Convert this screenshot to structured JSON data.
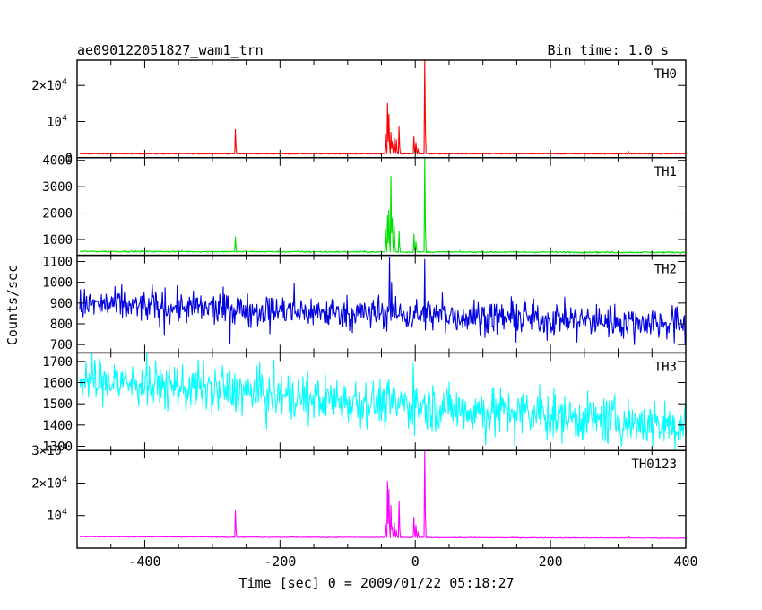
{
  "chart_data": {
    "type": "line",
    "title": "ae090122051827_wam1_trn",
    "subtitle": "Bin time: 1.0 s",
    "xlabel": "Time [sec] 0 = 2009/01/22 05:18:27",
    "ylabel": "Counts/sec",
    "xlim": [
      -500,
      400
    ],
    "xticks": [
      -400,
      -200,
      0,
      200,
      400
    ],
    "panels": [
      {
        "name": "TH0",
        "color": "#ff0000",
        "ylim": [
          0,
          27000
        ],
        "yticks": [
          {
            "v": 0,
            "m": "0",
            "e": ""
          },
          {
            "v": 10000,
            "m": "10",
            "e": "4"
          },
          {
            "v": 20000,
            "m": "2×10",
            "e": "4"
          }
        ],
        "baseline": 1100,
        "slope": 0,
        "noise": 60,
        "noise_mode": "flat",
        "peaks": [
          [
            -266,
            7800
          ],
          [
            -44,
            6500
          ],
          [
            -41,
            15000
          ],
          [
            -39,
            12000
          ],
          [
            -36,
            7000
          ],
          [
            -34,
            4500
          ],
          [
            -31,
            5500
          ],
          [
            -28,
            5000
          ],
          [
            -24,
            8500
          ],
          [
            -2,
            5800
          ],
          [
            1,
            4200
          ],
          [
            4,
            2500
          ],
          [
            14,
            27000
          ],
          [
            315,
            1900
          ]
        ]
      },
      {
        "name": "TH1",
        "color": "#00e000",
        "ylim": [
          400,
          4100
        ],
        "yticks": [
          {
            "v": 1000,
            "m": "1000",
            "e": ""
          },
          {
            "v": 2000,
            "m": "2000",
            "e": ""
          },
          {
            "v": 3000,
            "m": "3000",
            "e": ""
          },
          {
            "v": 4000,
            "m": "4000",
            "e": ""
          }
        ],
        "baseline": 530,
        "slope": -0.04,
        "noise": 15,
        "noise_mode": "flat",
        "peaks": [
          [
            -266,
            1100
          ],
          [
            -44,
            1400
          ],
          [
            -41,
            1900
          ],
          [
            -39,
            2100
          ],
          [
            -36,
            3400
          ],
          [
            -34,
            1800
          ],
          [
            -31,
            1500
          ],
          [
            -24,
            1300
          ],
          [
            -2,
            1200
          ],
          [
            1,
            900
          ],
          [
            14,
            4100
          ]
        ]
      },
      {
        "name": "TH2",
        "color": "#0000e0",
        "ylim": [
          660,
          1130
        ],
        "yticks": [
          {
            "v": 700,
            "m": "700",
            "e": ""
          },
          {
            "v": 800,
            "m": "800",
            "e": ""
          },
          {
            "v": 900,
            "m": "900",
            "e": ""
          },
          {
            "v": 1000,
            "m": "1000",
            "e": ""
          },
          {
            "v": 1100,
            "m": "1100",
            "e": ""
          }
        ],
        "baseline": 848,
        "slope": -0.1,
        "noise": 38,
        "noise_mode": "spiky",
        "peaks": [
          [
            -38,
            1120
          ],
          [
            -35,
            1000
          ],
          [
            14,
            1110
          ]
        ]
      },
      {
        "name": "TH3",
        "color": "#00ffff",
        "ylim": [
          1280,
          1740
        ],
        "yticks": [
          {
            "v": 1300,
            "m": "1300",
            "e": ""
          },
          {
            "v": 1400,
            "m": "1400",
            "e": ""
          },
          {
            "v": 1500,
            "m": "1500",
            "e": ""
          },
          {
            "v": 1600,
            "m": "1600",
            "e": ""
          },
          {
            "v": 1700,
            "m": "1700",
            "e": ""
          }
        ],
        "baseline": 1505,
        "slope": -0.25,
        "noise": 55,
        "noise_mode": "spiky",
        "peaks": [
          [
            -3,
            1690
          ]
        ]
      },
      {
        "name": "TH0123",
        "color": "#ff00ff",
        "ylim": [
          0,
          30000
        ],
        "yticks": [
          {
            "v": 10000,
            "m": "10",
            "e": "4"
          },
          {
            "v": 20000,
            "m": "2×10",
            "e": "4"
          },
          {
            "v": 30000,
            "m": "3×10",
            "e": "4"
          }
        ],
        "baseline": 3300,
        "slope": -0.5,
        "noise": 70,
        "noise_mode": "flat",
        "peaks": [
          [
            -266,
            11500
          ],
          [
            -44,
            7500
          ],
          [
            -41,
            20500
          ],
          [
            -39,
            18000
          ],
          [
            -36,
            13000
          ],
          [
            -34,
            6500
          ],
          [
            -31,
            8000
          ],
          [
            -28,
            5500
          ],
          [
            -24,
            14500
          ],
          [
            -2,
            9500
          ],
          [
            1,
            7000
          ],
          [
            4,
            5000
          ],
          [
            14,
            30000
          ],
          [
            315,
            3700
          ]
        ]
      }
    ]
  }
}
